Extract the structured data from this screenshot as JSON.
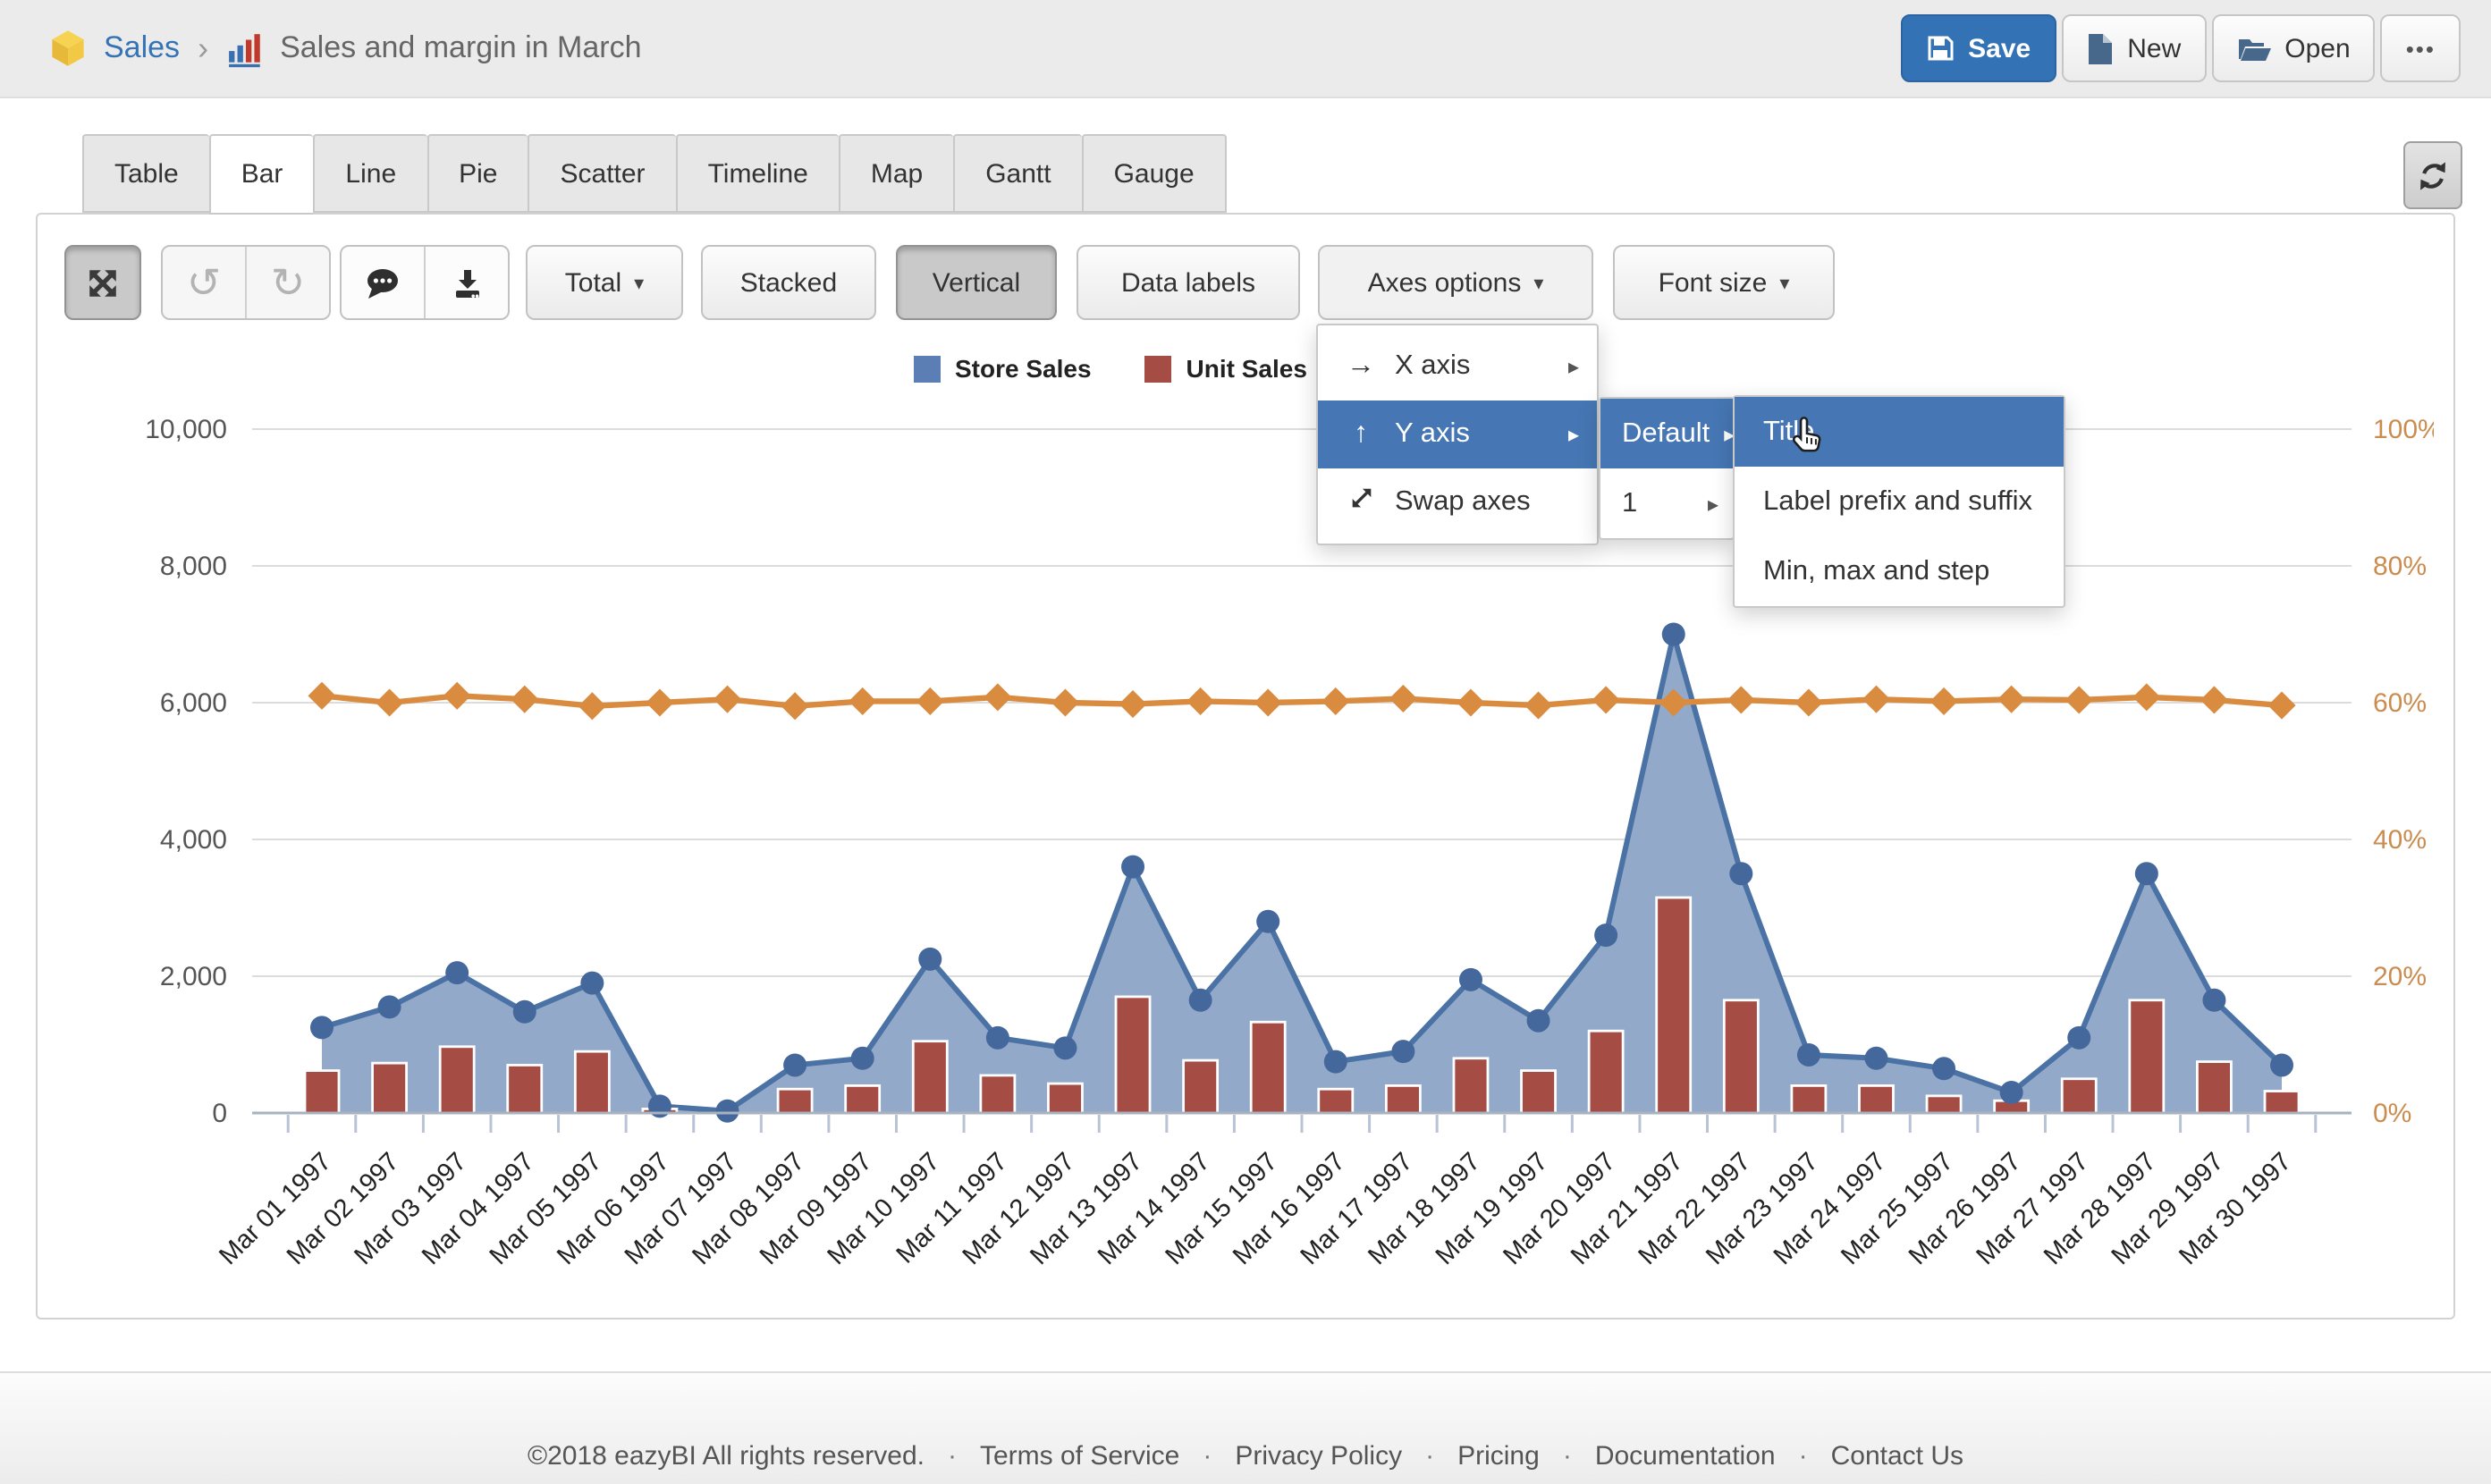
{
  "header": {
    "breadcrumb_app": "Sales",
    "breadcrumb_sep": "›",
    "report_title": "Sales and margin in March",
    "save": "Save",
    "new": "New",
    "open": "Open",
    "more": "•••"
  },
  "tabs": {
    "items": [
      "Table",
      "Bar",
      "Line",
      "Pie",
      "Scatter",
      "Timeline",
      "Map",
      "Gantt",
      "Gauge"
    ],
    "active": "Bar"
  },
  "toolbar": {
    "total": "Total",
    "stacked": "Stacked",
    "vertical": "Vertical",
    "data_labels": "Data labels",
    "axes_options": "Axes options",
    "font_size": "Font size"
  },
  "icons": {
    "caret_down": "▾",
    "submenu_arrow": "▸",
    "arrow_right": "→",
    "arrow_up": "↑",
    "undo": "↺",
    "redo": "↻"
  },
  "menus": {
    "axes_menu": [
      {
        "icon": "arrow-right",
        "label": "X axis",
        "submenu": true,
        "highlighted": false
      },
      {
        "icon": "arrow-up",
        "label": "Y axis",
        "submenu": true,
        "highlighted": true
      },
      {
        "icon": "swap",
        "label": "Swap axes",
        "submenu": false,
        "highlighted": false
      }
    ],
    "y_axis_submenu": [
      {
        "label": "Default",
        "submenu": true,
        "arrow_inline": true,
        "highlighted": true
      },
      {
        "label": "1",
        "submenu": true,
        "arrow_inline": false,
        "highlighted": false
      }
    ],
    "default_submenu": [
      {
        "label": "Title",
        "highlighted": true
      },
      {
        "label": "Label prefix and suffix",
        "highlighted": false
      },
      {
        "label": "Min, max and step",
        "highlighted": false
      }
    ]
  },
  "colors": {
    "accent_blue": "#3372b4",
    "menu_highlight": "#4677b4",
    "store_sales_swatch": "#5b7fb4",
    "store_sales_fill": "#93a9c9",
    "store_sales_line": "#4b72a5",
    "store_sales_marker": "#44689c",
    "unit_sales": "#a54c44",
    "margin_line": "#d98c3f",
    "right_axis_text": "#ca8c4f",
    "left_axis_text": "#555555",
    "gridline": "#dcdcdc"
  },
  "chart_data": {
    "type": "combo",
    "categories": [
      "Mar 01 1997",
      "Mar 02 1997",
      "Mar 03 1997",
      "Mar 04 1997",
      "Mar 05 1997",
      "Mar 06 1997",
      "Mar 07 1997",
      "Mar 08 1997",
      "Mar 09 1997",
      "Mar 10 1997",
      "Mar 11 1997",
      "Mar 12 1997",
      "Mar 13 1997",
      "Mar 14 1997",
      "Mar 15 1997",
      "Mar 16 1997",
      "Mar 17 1997",
      "Mar 18 1997",
      "Mar 19 1997",
      "Mar 20 1997",
      "Mar 21 1997",
      "Mar 22 1997",
      "Mar 23 1997",
      "Mar 24 1997",
      "Mar 25 1997",
      "Mar 26 1997",
      "Mar 27 1997",
      "Mar 28 1997",
      "Mar 29 1997",
      "Mar 30 1997"
    ],
    "series": [
      {
        "name": "Store Sales",
        "type": "area",
        "axis": "left",
        "marker": "circle",
        "values": [
          1250,
          1550,
          2050,
          1480,
          1900,
          100,
          30,
          700,
          800,
          2250,
          1100,
          950,
          3600,
          1650,
          2800,
          750,
          900,
          1950,
          1350,
          2600,
          7000,
          3500,
          850,
          800,
          650,
          300,
          1100,
          3500,
          1650,
          700
        ]
      },
      {
        "name": "Unit Sales",
        "type": "bar",
        "axis": "left",
        "values": [
          620,
          730,
          970,
          700,
          900,
          60,
          0,
          350,
          400,
          1050,
          550,
          430,
          1700,
          770,
          1330,
          350,
          400,
          800,
          620,
          1200,
          3150,
          1650,
          400,
          400,
          250,
          180,
          500,
          1650,
          750,
          320
        ]
      },
      {
        "name": "",
        "type": "line",
        "axis": "right",
        "marker": "diamond",
        "values": [
          61,
          60,
          61,
          60.5,
          59.5,
          60,
          60.5,
          59.5,
          60.2,
          60.2,
          60.8,
          60,
          59.8,
          60.2,
          60,
          60.2,
          60.6,
          60,
          59.6,
          60.4,
          60,
          60.4,
          60,
          60.5,
          60.2,
          60.5,
          60.4,
          60.8,
          60.4,
          59.6
        ]
      }
    ],
    "left_axis": {
      "labels": [
        "0",
        "2,000",
        "4,000",
        "6,000",
        "8,000",
        "10,000"
      ],
      "min": 0,
      "max": 10000,
      "step": 2000
    },
    "right_axis": {
      "labels": [
        "0%",
        "20%",
        "40%",
        "60%",
        "80%",
        "100%"
      ],
      "min": 0,
      "max": 100,
      "step": 20
    },
    "grid": true,
    "legend_position": "top"
  },
  "footer": {
    "copyright": "©2018 eazyBI All rights reserved.",
    "separator": "·",
    "links": [
      "Terms of Service",
      "Privacy Policy",
      "Pricing",
      "Documentation",
      "Contact Us"
    ]
  }
}
